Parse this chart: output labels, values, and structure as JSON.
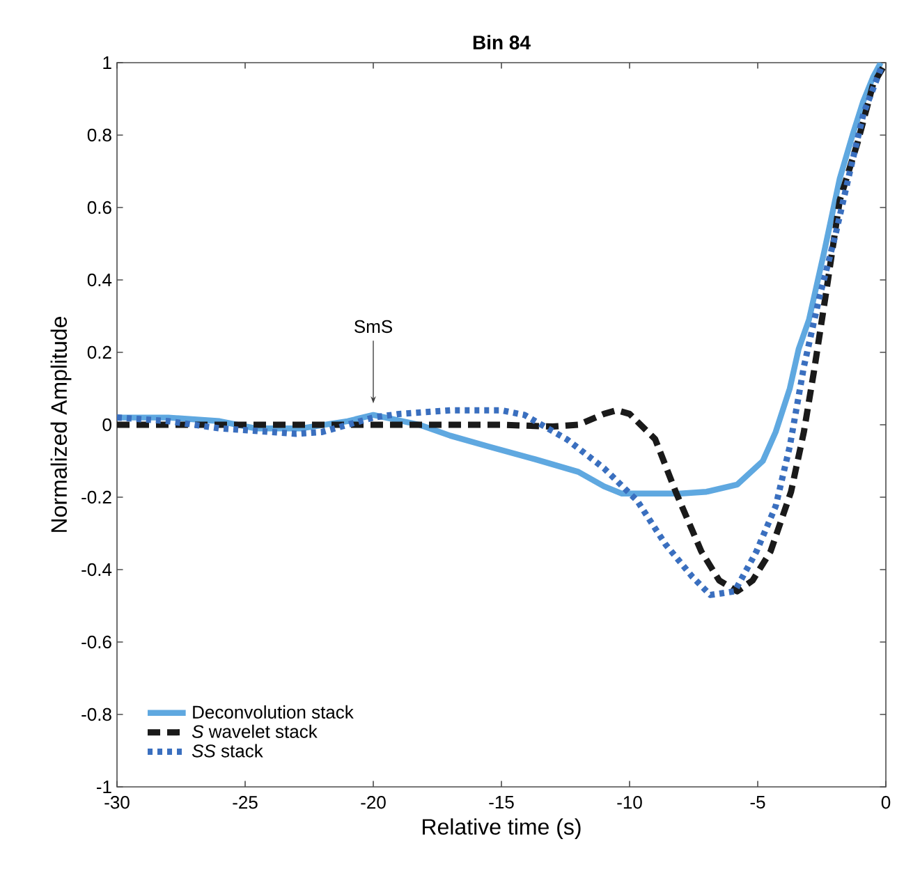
{
  "chart_data": {
    "type": "line",
    "title": "Bin 84",
    "xlabel": "Relative time (s)",
    "ylabel": "Normalized Amplitude",
    "xlim": [
      -30,
      0
    ],
    "ylim": [
      -1,
      1
    ],
    "xticks": [
      -30,
      -25,
      -20,
      -15,
      -10,
      -5,
      0
    ],
    "yticks": [
      -1,
      -0.8,
      -0.6,
      -0.4,
      -0.2,
      0,
      0.2,
      0.4,
      0.6,
      0.8,
      1
    ],
    "grid": false,
    "legend": "bottom left",
    "annotations": [
      {
        "text": "SmS",
        "x": -20,
        "y": 0.04
      }
    ],
    "series": [
      {
        "name": "Deconvolution stack",
        "color": "#5fa8e0",
        "line_style": "solid",
        "x": [
          -30,
          -28,
          -26,
          -24.6,
          -22.8,
          -21,
          -20,
          -18.2,
          -17,
          -15.5,
          -13.7,
          -12,
          -11,
          -10.3,
          -9,
          -8,
          -7,
          -5.8,
          -4.8,
          -4.3,
          -3.75,
          -3.4,
          -3,
          -2.4,
          -1.8,
          -1.3,
          -0.9,
          -0.5,
          -0.2
        ],
        "values": [
          0.02,
          0.02,
          0.01,
          -0.01,
          -0.01,
          0.01,
          0.027,
          0,
          -0.03,
          -0.06,
          -0.095,
          -0.13,
          -0.17,
          -0.19,
          -0.19,
          -0.19,
          -0.185,
          -0.165,
          -0.1,
          -0.02,
          0.1,
          0.21,
          0.29,
          0.48,
          0.68,
          0.8,
          0.89,
          0.96,
          1.0
        ]
      },
      {
        "name": "*S* wavelet stack",
        "color": "#1a1a1a",
        "line_style": "dashed",
        "x": [
          -30,
          -25,
          -20,
          -15,
          -13,
          -12,
          -11,
          -10.5,
          -10,
          -9,
          -8.2,
          -7.2,
          -6.5,
          -5.8,
          -5.2,
          -4.5,
          -3.7,
          -3.2,
          -2.8,
          -2.3,
          -1.8,
          -1.1,
          -0.5,
          0
        ],
        "values": [
          0,
          0,
          0,
          0,
          -0.005,
          0,
          0.03,
          0.04,
          0.03,
          -0.04,
          -0.185,
          -0.35,
          -0.43,
          -0.46,
          -0.43,
          -0.35,
          -0.185,
          -0.02,
          0.15,
          0.38,
          0.62,
          0.78,
          0.94,
          1.0
        ]
      },
      {
        "name": "*SS* stack",
        "color": "#3a6fbf",
        "line_style": "dotted",
        "x": [
          -30,
          -28,
          -26,
          -24,
          -23,
          -22,
          -20,
          -19,
          -17,
          -15,
          -14.1,
          -12.45,
          -11,
          -9.7,
          -8.6,
          -7.55,
          -6.85,
          -5.9,
          -5.05,
          -4.3,
          -3.75,
          -3.2,
          -2.6,
          -1.95,
          -1.4,
          -0.87,
          -0.16
        ],
        "values": [
          0.02,
          0.01,
          -0.01,
          -0.02,
          -0.025,
          -0.02,
          0.02,
          0.03,
          0.04,
          0.04,
          0.027,
          -0.04,
          -0.12,
          -0.21,
          -0.33,
          -0.42,
          -0.47,
          -0.46,
          -0.35,
          -0.225,
          -0.06,
          0.16,
          0.35,
          0.53,
          0.7,
          0.86,
          0.99
        ]
      }
    ]
  }
}
